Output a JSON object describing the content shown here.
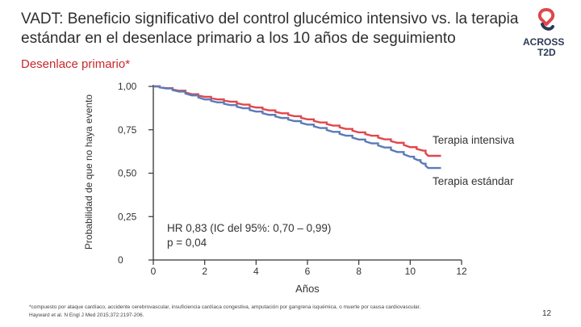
{
  "header": {
    "title": "VADT: Beneficio significativo del control glucémico intensivo vs. la terapia estándar en el desenlace primario a los 10 años de seguimiento",
    "subtitle": "Desenlace primario*"
  },
  "logo": {
    "line1": "ACROSS",
    "line2": "T2D"
  },
  "colors": {
    "intensive": "#e0474c",
    "standard": "#5b7bb8",
    "axis": "#333333",
    "accent": "#c8282d"
  },
  "chart_data": {
    "type": "line",
    "title": "",
    "xlabel": "Años",
    "ylabel": "Probabilidad de que no haya evento",
    "xlim": [
      0,
      12
    ],
    "ylim": [
      0,
      1
    ],
    "x_ticks": [
      "0",
      "2",
      "4",
      "6",
      "8",
      "10",
      "12"
    ],
    "y_ticks": [
      {
        "value": 0,
        "label": "0"
      },
      {
        "value": 0.25,
        "label": "0,25"
      },
      {
        "value": 0.5,
        "label": "0,50"
      },
      {
        "value": 0.75,
        "label": "0,75"
      },
      {
        "value": 1,
        "label": "1,00"
      }
    ],
    "series": [
      {
        "name": "Terapia intensiva",
        "color": "#e0474c",
        "points": [
          [
            0,
            1.0
          ],
          [
            0.5,
            0.99
          ],
          [
            1,
            0.975
          ],
          [
            1.5,
            0.955
          ],
          [
            2,
            0.94
          ],
          [
            2.5,
            0.925
          ],
          [
            3,
            0.912
          ],
          [
            3.5,
            0.895
          ],
          [
            4,
            0.878
          ],
          [
            4.5,
            0.862
          ],
          [
            5,
            0.845
          ],
          [
            5.5,
            0.828
          ],
          [
            6,
            0.81
          ],
          [
            6.5,
            0.792
          ],
          [
            7,
            0.774
          ],
          [
            7.5,
            0.755
          ],
          [
            8,
            0.735
          ],
          [
            8.5,
            0.716
          ],
          [
            9,
            0.695
          ],
          [
            9.5,
            0.675
          ],
          [
            10,
            0.65
          ],
          [
            10.5,
            0.63
          ],
          [
            10.7,
            0.6
          ],
          [
            11.2,
            0.6
          ]
        ]
      },
      {
        "name": "Terapia estándar",
        "color": "#5b7bb8",
        "points": [
          [
            0,
            1.0
          ],
          [
            0.5,
            0.988
          ],
          [
            1,
            0.97
          ],
          [
            1.5,
            0.948
          ],
          [
            2,
            0.925
          ],
          [
            2.5,
            0.908
          ],
          [
            3,
            0.892
          ],
          [
            3.5,
            0.874
          ],
          [
            4,
            0.855
          ],
          [
            4.5,
            0.836
          ],
          [
            5,
            0.818
          ],
          [
            5.5,
            0.8
          ],
          [
            6,
            0.78
          ],
          [
            6.5,
            0.76
          ],
          [
            7,
            0.738
          ],
          [
            7.5,
            0.716
          ],
          [
            8,
            0.694
          ],
          [
            8.5,
            0.672
          ],
          [
            9,
            0.648
          ],
          [
            9.5,
            0.622
          ],
          [
            10,
            0.595
          ],
          [
            10.3,
            0.575
          ],
          [
            10.5,
            0.555
          ],
          [
            10.7,
            0.53
          ],
          [
            11.2,
            0.53
          ]
        ]
      }
    ],
    "annotations": [
      "HR 0,83 (IC del 95%: 0,70 – 0,99)",
      "p = 0,04"
    ]
  },
  "footnote": {
    "line1": "*compuesto por ataque cardíaco, accidente cerebrovascular, insuficiencia cardíaca congestiva, amputación por gangrena isquémica, o muerte por causa cardiovascular.",
    "line2": "Hayward et al. N Engl J Med 2015;372:2197-206."
  },
  "page_number": "12"
}
